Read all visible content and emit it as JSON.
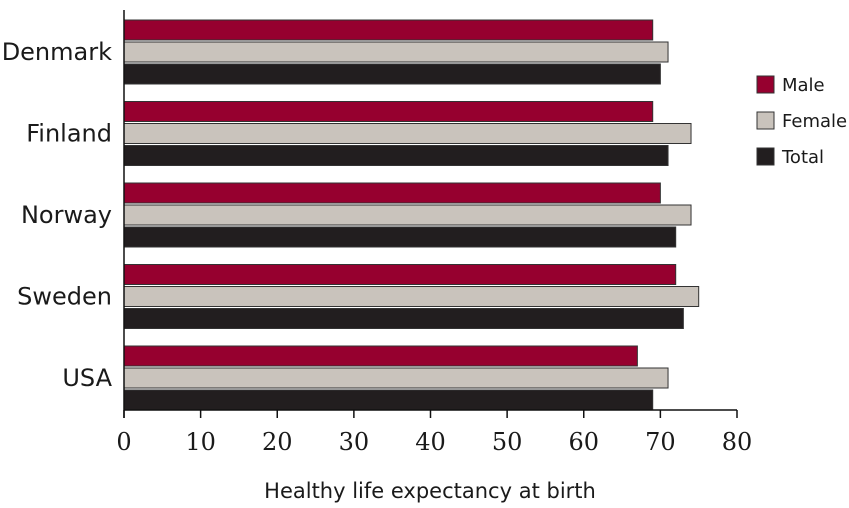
{
  "chart_data": {
    "type": "bar",
    "orientation": "horizontal",
    "categories": [
      "Denmark",
      "Finland",
      "Norway",
      "Sweden",
      "USA"
    ],
    "series": [
      {
        "name": "Male",
        "color": "#96002f",
        "values": [
          69,
          69,
          70,
          72,
          67
        ]
      },
      {
        "name": "Female",
        "color": "#c9c3bc",
        "values": [
          71,
          74,
          74,
          75,
          71
        ]
      },
      {
        "name": "Total",
        "color": "#221e1f",
        "values": [
          70,
          71,
          72,
          73,
          69
        ]
      }
    ],
    "xlabel": "Healthy life expectancy at birth",
    "ylabel": "",
    "xlim": [
      0,
      80
    ],
    "xticks": [
      0,
      10,
      20,
      30,
      40,
      50,
      60,
      70,
      80
    ],
    "grid": false,
    "legend_position": "right"
  }
}
